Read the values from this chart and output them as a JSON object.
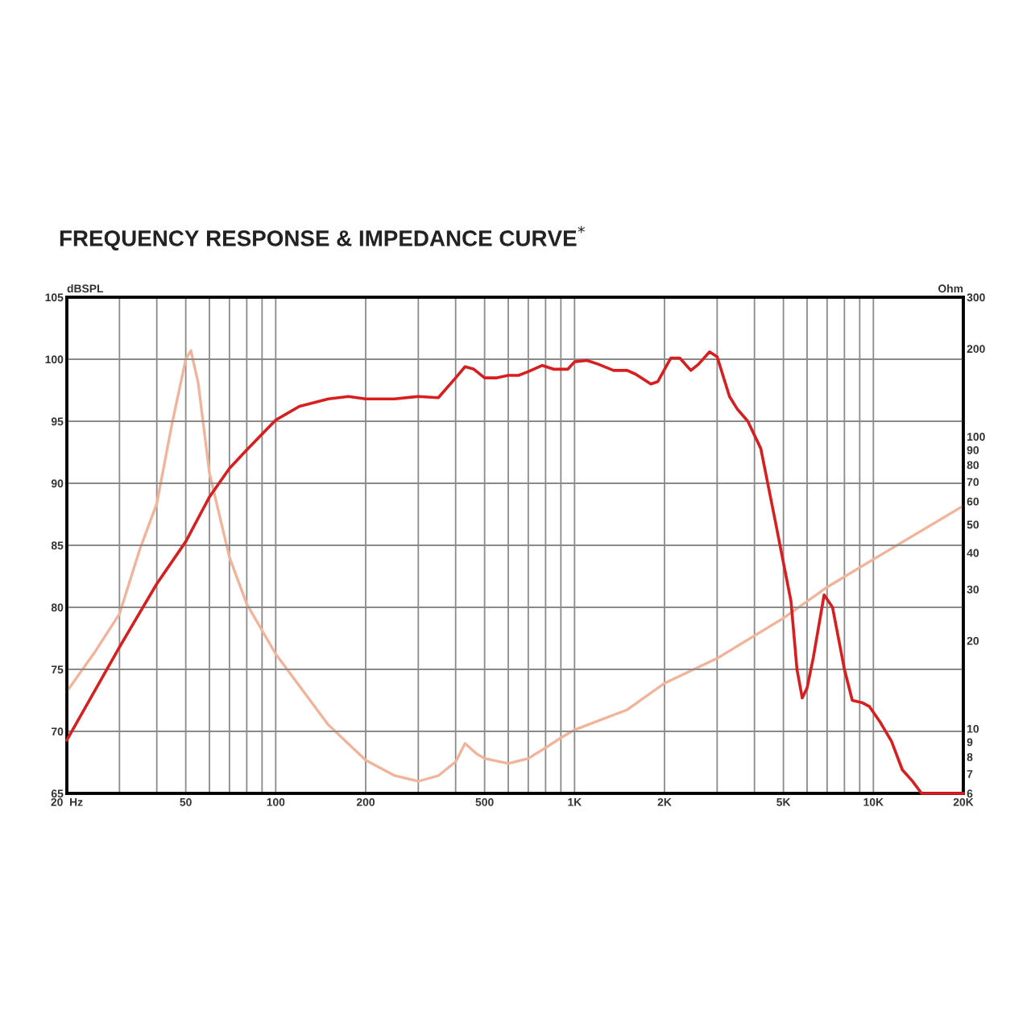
{
  "chart_data": {
    "type": "line",
    "title": "FREQUENCY RESPONSE & IMPEDANCE CURVE$^{*}$",
    "ylabel": "Ohm",
    "y2label": "dBSPL",
    "log": "xy",
    "grid": true,
    "marker": "none",
    "line_style": "solid",
    "xlim": [
      20,
      20000
    ],
    "xticks": [
      {
        "value": 20,
        "label": "20  Hz"
      },
      {
        "value": 30,
        "label": null
      },
      {
        "value": 40,
        "label": null
      },
      50,
      {
        "value": 60,
        "label": null
      },
      {
        "value": 70,
        "label": null
      },
      {
        "value": 80,
        "label": null
      },
      {
        "value": 90,
        "label": null
      },
      100,
      200,
      {
        "value": 300,
        "label": null
      },
      {
        "value": 400,
        "label": null
      },
      500,
      {
        "value": 600,
        "label": null
      },
      {
        "value": 700,
        "label": null
      },
      {
        "value": 800,
        "label": null
      },
      {
        "value": 900,
        "label": null
      },
      {
        "value": 1000,
        "label": "1K"
      },
      {
        "value": 2000,
        "label": "2K"
      },
      {
        "value": 3000,
        "label": null
      },
      {
        "value": 4000,
        "label": null
      },
      {
        "value": 5000,
        "label": "5K"
      },
      {
        "value": 6000,
        "label": null
      },
      {
        "value": 7000,
        "label": null
      },
      {
        "value": 8000,
        "label": null
      },
      {
        "value": 9000,
        "label": null
      },
      {
        "value": 10000,
        "label": "10K"
      },
      {
        "value": 20000,
        "label": "20K"
      }
    ],
    "ylim": [
      6,
      300
    ],
    "yticks": [
      6,
      7,
      8,
      9,
      10,
      20,
      30,
      40,
      50,
      60,
      70,
      80,
      90,
      100,
      200,
      300
    ],
    "y2lim": [
      65,
      105
    ],
    "y2ticks": [
      65,
      70,
      75,
      80,
      85,
      90,
      95,
      100,
      105
    ],
    "series": [
      {
        "color": "#f2b39b",
        "x": [
          20,
          25,
          30,
          35,
          40,
          45,
          50,
          52,
          55,
          60,
          70,
          80,
          100,
          150,
          200,
          250,
          300,
          350,
          400,
          430,
          470,
          500,
          600,
          700,
          800,
          900,
          1000,
          1500,
          2000,
          3000,
          5000,
          7000,
          10000,
          20000
        ],
        "values": [
          13.4,
          18.5,
          24.7,
          40.8,
          59,
          111,
          184,
          197,
          153,
          75,
          38.6,
          26.7,
          18.0,
          10.3,
          7.8,
          6.9,
          6.6,
          6.9,
          7.7,
          8.9,
          8.2,
          7.9,
          7.6,
          7.9,
          8.6,
          9.3,
          9.9,
          11.6,
          14.3,
          17.4,
          23.9,
          30.5,
          38,
          57.9
        ]
      },
      {
        "color": "#d81e1e",
        "axis": "y2",
        "x": [
          20,
          30,
          40,
          50,
          60,
          70,
          80,
          100,
          120,
          150,
          175,
          200,
          250,
          300,
          350,
          400,
          430,
          460,
          500,
          550,
          600,
          650,
          700,
          780,
          850,
          950,
          1000,
          1100,
          1200,
          1350,
          1500,
          1600,
          1800,
          1900,
          2100,
          2250,
          2450,
          2600,
          2830,
          3000,
          3300,
          3500,
          3800,
          4200,
          4700,
          5300,
          5550,
          5780,
          6000,
          6300,
          6840,
          7300,
          8000,
          8500,
          9200,
          9700,
          10500,
          11500,
          12500,
          13500,
          14500,
          20000
        ],
        "values": [
          69.3,
          76.8,
          81.9,
          85.3,
          88.9,
          91.2,
          92.7,
          95.1,
          96.2,
          96.8,
          97.0,
          96.8,
          96.8,
          97.0,
          96.9,
          98.5,
          99.4,
          99.2,
          98.5,
          98.5,
          98.7,
          98.7,
          99.0,
          99.5,
          99.2,
          99.2,
          99.8,
          99.9,
          99.6,
          99.1,
          99.1,
          98.8,
          98.0,
          98.2,
          100.1,
          100.1,
          99.1,
          99.6,
          100.6,
          100.2,
          97.0,
          96.0,
          95.0,
          92.8,
          86.9,
          80.5,
          75.0,
          72.7,
          73.5,
          76.0,
          81.0,
          80.0,
          75.0,
          72.5,
          72.3,
          72.0,
          70.8,
          69.2,
          66.9,
          66.0,
          65.0,
          65.0
        ]
      }
    ]
  }
}
